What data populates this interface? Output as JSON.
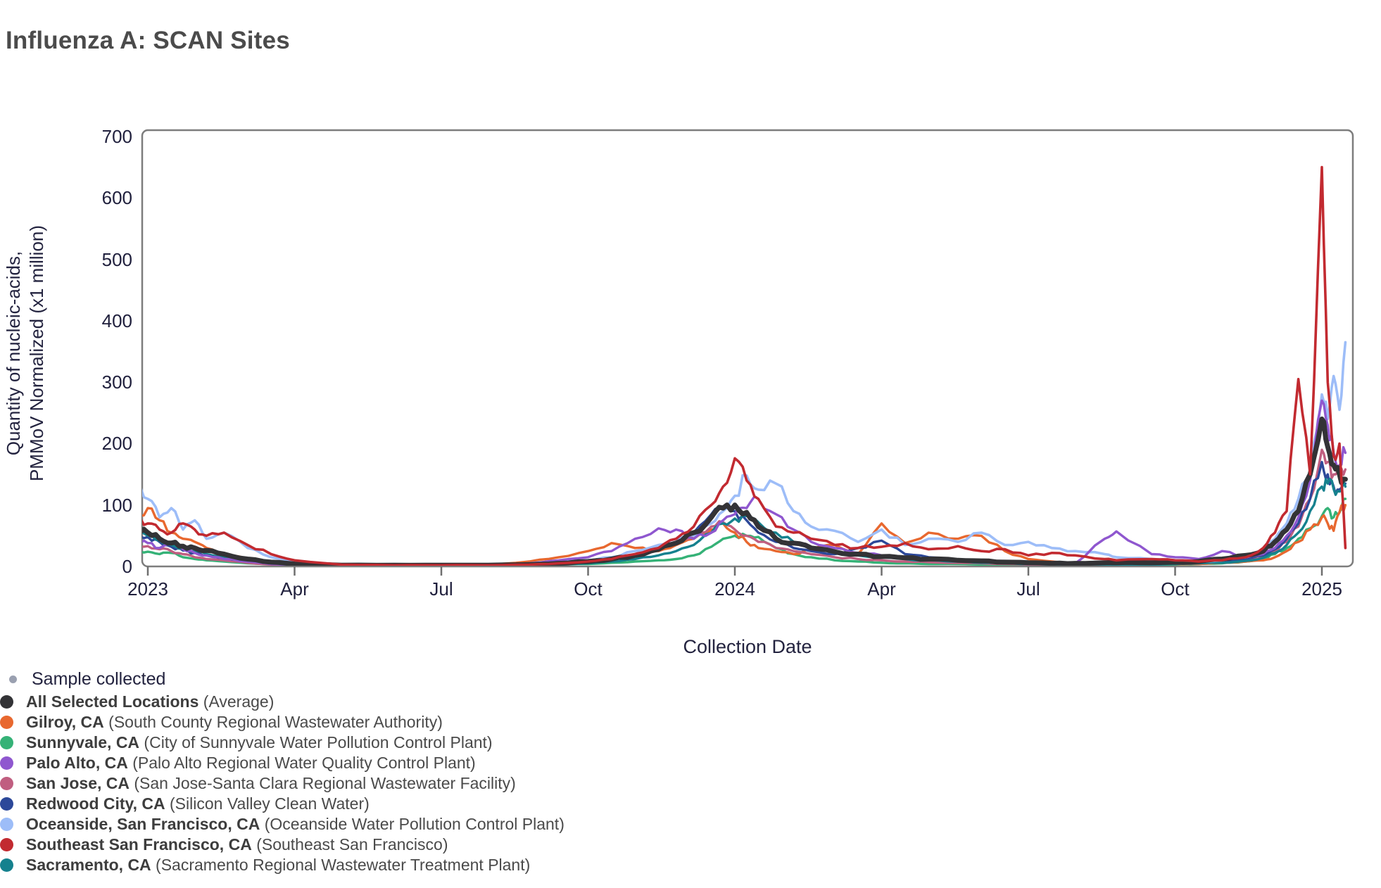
{
  "page": {
    "title": "Influenza A: SCAN Sites"
  },
  "colors": {
    "title_text": "#4b4b4b",
    "axis_text": "#20203d",
    "axis_line": "#7d7d7d",
    "tick_mark": "#6f6f6f",
    "legend_name_text": "#3d3d3d",
    "legend_detail_text": "#4a4a4a",
    "background": "#ffffff"
  },
  "legend": {
    "sample_collected": {
      "label": "Sample collected",
      "dot_color": "#9aa0b0"
    }
  },
  "chart_data": {
    "type": "line",
    "title": "Influenza A: SCAN Sites",
    "xlabel": "Collection Date",
    "ylabel_line1": "Quantity of nucleic-acids,",
    "ylabel_line2": "PMMoV Normalized (x1 million)",
    "ylim": [
      0,
      700
    ],
    "yticks": [
      0,
      100,
      200,
      300,
      400,
      500,
      600,
      700
    ],
    "x_units": "decimal_year",
    "x_range": [
      2022.98,
      2025.05
    ],
    "grid": false,
    "legend_position": "bottom-left",
    "xticks": [
      {
        "x": 2023.0,
        "label": "2023"
      },
      {
        "x": 2023.25,
        "label": "Apr"
      },
      {
        "x": 2023.5,
        "label": "Jul"
      },
      {
        "x": 2023.75,
        "label": "Oct"
      },
      {
        "x": 2024.0,
        "label": "2024"
      },
      {
        "x": 2024.25,
        "label": "Apr"
      },
      {
        "x": 2024.5,
        "label": "Jul"
      },
      {
        "x": 2024.75,
        "label": "Oct"
      },
      {
        "x": 2025.0,
        "label": "2025"
      }
    ],
    "x": [
      2022.98,
      2023.0,
      2023.02,
      2023.04,
      2023.06,
      2023.08,
      2023.1,
      2023.13,
      2023.17,
      2023.21,
      2023.25,
      2023.33,
      2023.42,
      2023.5,
      2023.58,
      2023.65,
      2023.7,
      2023.75,
      2023.79,
      2023.83,
      2023.87,
      2023.9,
      2023.93,
      2023.96,
      2023.98,
      2024.0,
      2024.02,
      2024.04,
      2024.07,
      2024.1,
      2024.13,
      2024.17,
      2024.21,
      2024.25,
      2024.29,
      2024.33,
      2024.38,
      2024.42,
      2024.46,
      2024.5,
      2024.54,
      2024.58,
      2024.63,
      2024.65,
      2024.71,
      2024.75,
      2024.79,
      2024.83,
      2024.87,
      2024.9,
      2024.92,
      2024.94,
      2024.96,
      2024.98,
      2025.0,
      2025.01,
      2025.02,
      2025.03,
      2025.04
    ],
    "draw_order": [
      "sunnyvale",
      "gilroy",
      "san_jose",
      "redwood_city",
      "sacramento",
      "oceanside",
      "palo_alto",
      "all",
      "southeast_sf"
    ],
    "average_series": "all",
    "series": [
      {
        "id": "all",
        "legend_bold": "All Selected Locations",
        "legend_detail": "(Average)",
        "color": "#333336",
        "line_width": 7,
        "values": [
          62,
          55,
          45,
          38,
          33,
          30,
          26,
          20,
          12,
          7,
          4,
          2,
          2,
          2,
          2,
          3,
          5,
          8,
          12,
          18,
          28,
          38,
          55,
          80,
          95,
          100,
          88,
          65,
          45,
          38,
          30,
          24,
          20,
          16,
          14,
          12,
          10,
          9,
          7,
          6,
          5,
          5,
          6,
          6,
          6,
          7,
          8,
          12,
          18,
          25,
          40,
          60,
          90,
          150,
          240,
          195,
          165,
          150,
          142
        ]
      },
      {
        "id": "gilroy",
        "legend_bold": "Gilroy, CA",
        "legend_detail": "(South County Regional Wastewater Authority)",
        "color": "#e8682f",
        "line_width": 3.4,
        "values": [
          70,
          95,
          75,
          55,
          45,
          40,
          30,
          22,
          12,
          6,
          3,
          1,
          1,
          1,
          2,
          8,
          15,
          25,
          38,
          30,
          25,
          35,
          45,
          60,
          70,
          55,
          40,
          30,
          25,
          20,
          28,
          35,
          20,
          70,
          38,
          55,
          45,
          50,
          25,
          12,
          8,
          5,
          4,
          4,
          4,
          4,
          4,
          6,
          8,
          10,
          15,
          25,
          40,
          60,
          80,
          70,
          58,
          88,
          100
        ]
      },
      {
        "id": "sunnyvale",
        "legend_bold": "Sunnyvale, CA",
        "legend_detail": "(City of Sunnyvale Water Pollution Control Plant)",
        "color": "#35b277",
        "line_width": 3.4,
        "values": [
          25,
          24,
          20,
          22,
          15,
          12,
          10,
          8,
          5,
          3,
          2,
          1,
          1,
          1,
          1,
          2,
          3,
          4,
          6,
          8,
          10,
          12,
          18,
          32,
          45,
          50,
          50,
          48,
          30,
          20,
          15,
          10,
          8,
          6,
          5,
          4,
          4,
          3,
          3,
          2,
          2,
          2,
          3,
          3,
          3,
          3,
          4,
          5,
          8,
          12,
          20,
          30,
          45,
          62,
          82,
          95,
          80,
          88,
          110
        ]
      },
      {
        "id": "palo_alto",
        "legend_bold": "Palo Alto, CA",
        "legend_detail": "(Palo Alto Regional Water Quality Control Plant)",
        "color": "#8f57cf",
        "line_width": 3.4,
        "values": [
          40,
          38,
          30,
          40,
          28,
          22,
          18,
          12,
          8,
          4,
          2,
          1,
          1,
          1,
          2,
          5,
          10,
          15,
          25,
          45,
          62,
          60,
          45,
          55,
          75,
          85,
          95,
          110,
          85,
          60,
          40,
          30,
          22,
          18,
          15,
          12,
          10,
          8,
          6,
          5,
          4,
          5,
          45,
          57,
          20,
          15,
          12,
          25,
          15,
          20,
          30,
          50,
          80,
          140,
          270,
          230,
          185,
          165,
          185
        ]
      },
      {
        "id": "san_jose",
        "legend_bold": "San Jose, CA",
        "legend_detail": "(San Jose-Santa Clara Regional Wastewater Facility)",
        "color": "#c05e80",
        "line_width": 3.4,
        "values": [
          35,
          33,
          28,
          25,
          20,
          15,
          12,
          10,
          6,
          3,
          2,
          1,
          1,
          1,
          1,
          3,
          5,
          8,
          12,
          20,
          30,
          40,
          50,
          65,
          72,
          60,
          50,
          40,
          30,
          25,
          20,
          15,
          12,
          10,
          8,
          7,
          6,
          5,
          4,
          3,
          3,
          3,
          3,
          4,
          4,
          4,
          5,
          7,
          10,
          15,
          25,
          40,
          65,
          110,
          190,
          170,
          150,
          145,
          158
        ]
      },
      {
        "id": "redwood_city",
        "legend_bold": "Redwood City, CA",
        "legend_detail": "(Silicon Valley Clean Water)",
        "color": "#2c4899",
        "line_width": 3.4,
        "values": [
          55,
          48,
          40,
          32,
          26,
          22,
          18,
          14,
          8,
          4,
          2,
          1,
          1,
          1,
          2,
          3,
          5,
          8,
          12,
          18,
          28,
          40,
          55,
          85,
          95,
          90,
          75,
          55,
          40,
          30,
          25,
          20,
          30,
          42,
          20,
          15,
          10,
          8,
          6,
          5,
          4,
          4,
          4,
          4,
          5,
          5,
          6,
          8,
          12,
          18,
          28,
          45,
          70,
          110,
          170,
          150,
          130,
          125,
          135
        ]
      },
      {
        "id": "oceanside",
        "legend_bold": "Oceanside, San Francisco, CA",
        "legend_detail": "(Oceanside Water Pollution Control Plant)",
        "color": "#9dbdf8",
        "line_width": 3.6,
        "values": [
          130,
          110,
          80,
          95,
          60,
          75,
          45,
          55,
          30,
          15,
          8,
          3,
          2,
          2,
          3,
          5,
          8,
          10,
          15,
          25,
          35,
          45,
          50,
          70,
          90,
          115,
          148,
          125,
          135,
          90,
          65,
          58,
          40,
          60,
          35,
          45,
          40,
          55,
          35,
          40,
          30,
          25,
          20,
          15,
          12,
          10,
          8,
          10,
          15,
          25,
          45,
          70,
          110,
          150,
          280,
          240,
          310,
          255,
          365
        ]
      },
      {
        "id": "southeast_sf",
        "legend_bold": "Southeast San Francisco, CA",
        "legend_detail": "(Southeast San Francisco)",
        "color": "#c22a30",
        "line_width": 3.6,
        "values": [
          75,
          70,
          60,
          55,
          70,
          60,
          50,
          55,
          35,
          20,
          10,
          3,
          2,
          2,
          2,
          3,
          5,
          8,
          12,
          20,
          30,
          45,
          65,
          100,
          130,
          176,
          140,
          110,
          65,
          55,
          45,
          35,
          30,
          32,
          38,
          28,
          33,
          25,
          28,
          18,
          22,
          18,
          12,
          10,
          12,
          10,
          8,
          10,
          15,
          30,
          55,
          90,
          305,
          150,
          650,
          300,
          180,
          200,
          30
        ]
      },
      {
        "id": "sacramento",
        "legend_bold": "Sacramento, CA",
        "legend_detail": "(Sacramento Regional Wastewater Treatment Plant)",
        "color": "#15818e",
        "line_width": 3.4,
        "values": [
          55,
          50,
          42,
          35,
          30,
          25,
          20,
          15,
          10,
          5,
          3,
          1,
          1,
          1,
          1,
          2,
          3,
          5,
          8,
          12,
          18,
          25,
          35,
          55,
          70,
          78,
          82,
          72,
          55,
          40,
          30,
          22,
          18,
          15,
          12,
          10,
          8,
          6,
          5,
          4,
          3,
          3,
          3,
          3,
          3,
          4,
          5,
          6,
          9,
          14,
          22,
          35,
          55,
          90,
          130,
          135,
          126,
          122,
          130
        ]
      }
    ]
  }
}
